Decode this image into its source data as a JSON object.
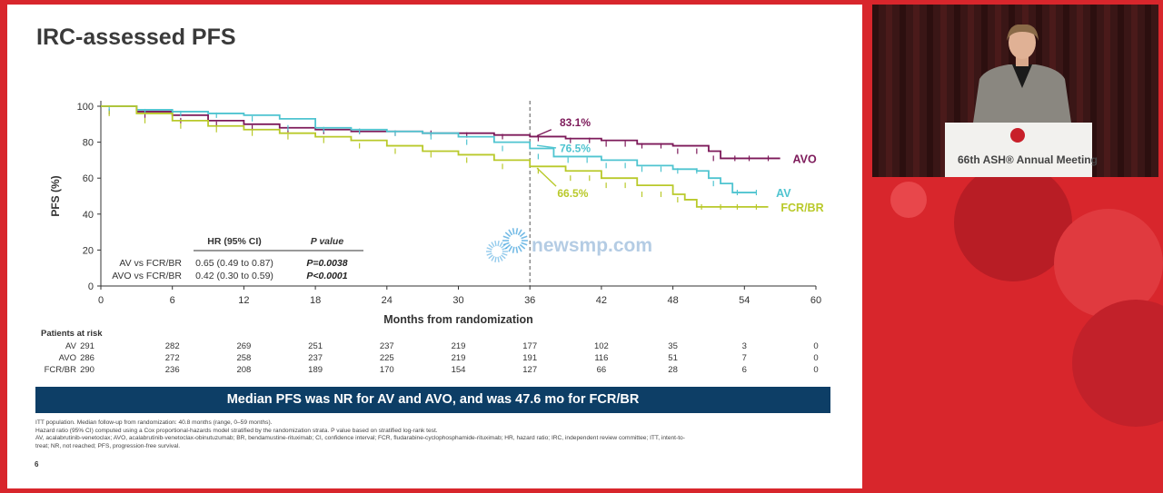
{
  "slide": {
    "title": "IRC-assessed PFS",
    "number": "6",
    "banner": "Median PFS was NR for AV and AVO, and was 47.6 mo for FCR/BR",
    "footnotes": [
      "ITT population. Median follow-up from randomization: 40.8 months (range, 0–59 months).",
      "Hazard ratio (95% CI) computed using a Cox proportional-hazards model stratified by the randomization strata. P value based on stratified log-rank test.",
      "AV, acalabrutinib-venetoclax; AVO, acalabrutinib-venetoclax-obinutuzumab; BR, bendamustine-rituximab; CI, confidence interval; FCR, fludarabine-cyclophosphamide-rituximab; HR, hazard ratio; IRC, independent review committee; ITT, intent-to-",
      "treat; NR, not reached; PFS, progression-free survival."
    ]
  },
  "chart_data": {
    "type": "line",
    "xlabel": "Months from randomization",
    "ylabel": "PFS (%)",
    "xlim": [
      0,
      60
    ],
    "ylim": [
      0,
      100
    ],
    "xticks": [
      0,
      6,
      12,
      18,
      24,
      30,
      36,
      42,
      48,
      54,
      60
    ],
    "yticks": [
      0,
      20,
      40,
      60,
      80,
      100
    ],
    "reference_line_x": 36,
    "series": [
      {
        "name": "AVO",
        "color": "#7d1a5a",
        "landmark_label": "83.1%",
        "x": [
          0,
          3,
          6,
          9,
          12,
          15,
          18,
          21,
          24,
          27,
          30,
          33,
          36,
          39,
          42,
          45,
          48,
          51,
          52,
          54,
          57
        ],
        "y": [
          100,
          97,
          95,
          92,
          90,
          88,
          87,
          86,
          86,
          85,
          85,
          84,
          83.1,
          82,
          81,
          79,
          78,
          75,
          71,
          71,
          71
        ]
      },
      {
        "name": "AV",
        "color": "#4fc4d0",
        "landmark_label": "76.5%",
        "x": [
          0,
          3,
          6,
          9,
          12,
          15,
          18,
          21,
          24,
          27,
          30,
          33,
          36,
          38,
          42,
          45,
          48,
          50,
          51,
          52,
          53,
          55
        ],
        "y": [
          100,
          98,
          97,
          96,
          95,
          93,
          88,
          87,
          86,
          85,
          83,
          80,
          76.5,
          72,
          70,
          67,
          65,
          64,
          60,
          57,
          52,
          52
        ]
      },
      {
        "name": "FCR/BR",
        "color": "#b9c92a",
        "landmark_label": "66.5%",
        "x": [
          0,
          3,
          6,
          9,
          12,
          15,
          18,
          21,
          24,
          27,
          30,
          33,
          36,
          39,
          42,
          45,
          48,
          49,
          50,
          53,
          56
        ],
        "y": [
          100,
          96,
          92,
          89,
          87,
          85,
          83,
          81,
          78,
          75,
          73,
          70,
          66.5,
          64,
          60,
          56,
          51,
          48,
          44,
          44,
          44
        ]
      }
    ],
    "hr_table": {
      "headers": [
        "HR (95% CI)",
        "P value"
      ],
      "rows": [
        {
          "label": "AV vs FCR/BR",
          "hr": "0.65 (0.49 to 0.87)",
          "p": "P=0.0038"
        },
        {
          "label": "AVO vs FCR/BR",
          "hr": "0.42 (0.30 to 0.59)",
          "p": "P<0.0001"
        }
      ]
    },
    "risk_table": {
      "title": "Patients at risk",
      "timepoints": [
        0,
        6,
        12,
        18,
        24,
        30,
        36,
        42,
        48,
        54,
        60
      ],
      "rows": [
        {
          "label": "AV",
          "values": [
            291,
            282,
            269,
            251,
            237,
            219,
            177,
            102,
            35,
            3,
            0
          ]
        },
        {
          "label": "AVO",
          "values": [
            286,
            272,
            258,
            237,
            225,
            219,
            191,
            116,
            51,
            7,
            0
          ]
        },
        {
          "label": "FCR/BR",
          "values": [
            290,
            236,
            208,
            189,
            170,
            154,
            127,
            66,
            28,
            6,
            0
          ]
        }
      ]
    }
  },
  "watermark": "newsmp.com",
  "video": {
    "podium_text": "66th ASH® Annual Meeting"
  },
  "colors": {
    "background": "#d8262c",
    "banner": "#0d3e66"
  }
}
